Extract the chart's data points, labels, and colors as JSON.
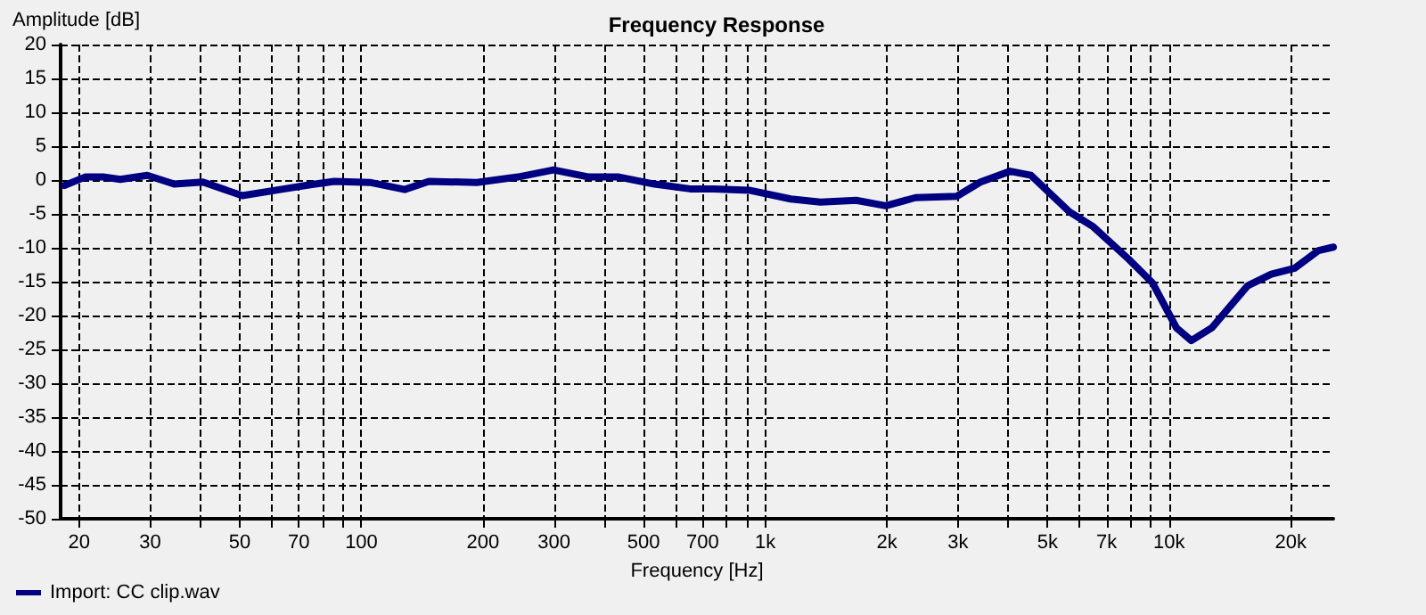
{
  "chart_data": {
    "type": "line",
    "title": "Frequency Response",
    "xlabel": "Frequency [Hz]",
    "ylabel": "Amplitude [dB]",
    "log": "x",
    "grid": true,
    "legend": "bottom left",
    "marker": "none",
    "line_style": "solid",
    "xlim": [
      18,
      25500
    ],
    "ylim": [
      -50,
      20
    ],
    "xticks": [
      20,
      30,
      {
        "value": 40,
        "label": null
      },
      50,
      {
        "value": 60,
        "label": null
      },
      70,
      {
        "value": 80,
        "label": null
      },
      {
        "value": 90,
        "label": null
      },
      100,
      200,
      300,
      {
        "value": 400,
        "label": null
      },
      500,
      {
        "value": 600,
        "label": null
      },
      700,
      {
        "value": 800,
        "label": null
      },
      {
        "value": 900,
        "label": null
      },
      {
        "value": 1000,
        "label": "1k"
      },
      {
        "value": 2000,
        "label": "2k"
      },
      {
        "value": 3000,
        "label": "3k"
      },
      {
        "value": 4000,
        "label": null
      },
      {
        "value": 5000,
        "label": "5k"
      },
      {
        "value": 6000,
        "label": null
      },
      {
        "value": 7000,
        "label": "7k"
      },
      {
        "value": 8000,
        "label": null
      },
      {
        "value": 9000,
        "label": null
      },
      {
        "value": 10000,
        "label": "10k"
      },
      {
        "value": 20000,
        "label": "20k"
      }
    ],
    "yticks": [
      -50,
      -45,
      -40,
      -35,
      -30,
      -25,
      -20,
      -15,
      -10,
      -5,
      0,
      5,
      10,
      15,
      20
    ],
    "series": [
      {
        "name": "Import: CC clip.wav",
        "color": "#000080",
        "x": [
          18.4,
          20.7,
          22.9,
          25.3,
          29.5,
          34.4,
          40.5,
          50.7,
          63,
          74.8,
          85.7,
          105,
          128,
          147,
          193,
          244,
          299,
          366,
          434,
          532,
          651,
          745,
          912,
          1156,
          1370,
          1679,
          1988,
          2353,
          2981,
          3410,
          4040,
          4547,
          5664,
          6490,
          7945,
          9103,
          10420,
          11350,
          12770,
          15640,
          17900,
          20480,
          23440,
          25500
        ],
        "values": [
          -0.8,
          0.45,
          0.45,
          0.1,
          0.7,
          -0.6,
          -0.3,
          -2.3,
          -1.4,
          -0.7,
          -0.2,
          -0.35,
          -1.4,
          -0.2,
          -0.35,
          0.45,
          1.5,
          0.45,
          0.45,
          -0.6,
          -1.3,
          -1.3,
          -1.5,
          -2.8,
          -3.25,
          -3.0,
          -3.8,
          -2.6,
          -2.4,
          -0.3,
          1.3,
          0.7,
          -4.7,
          -6.9,
          -11.7,
          -15.2,
          -21.8,
          -23.7,
          -21.8,
          -15.6,
          -13.9,
          -13.0,
          -10.4,
          -9.9
        ]
      }
    ]
  }
}
